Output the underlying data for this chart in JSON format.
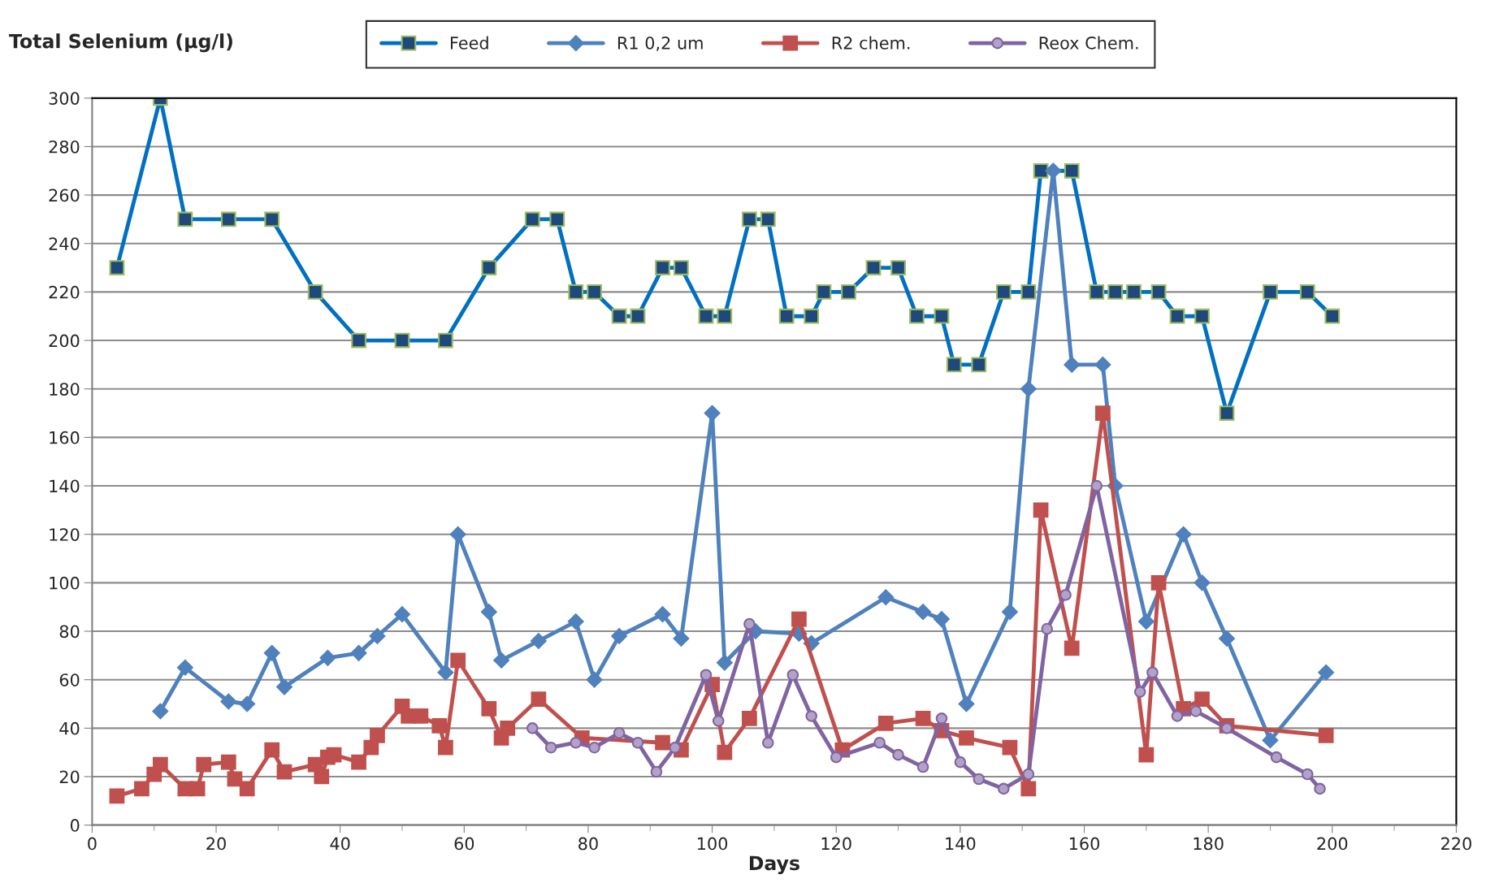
{
  "chart_data": {
    "type": "line",
    "xlabel": "Days",
    "ylabel": "Total Selenium (µg/l)",
    "xlim": [
      0,
      220
    ],
    "xticks": [
      0,
      20,
      40,
      60,
      80,
      100,
      120,
      140,
      160,
      180,
      200,
      220
    ],
    "ylim": [
      0,
      300
    ],
    "yticks": [
      0,
      20,
      40,
      60,
      80,
      100,
      120,
      140,
      160,
      180,
      200,
      220,
      240,
      260,
      280,
      300
    ],
    "grid": "y",
    "legend": "top",
    "series": [
      {
        "name": "Feed",
        "color": "#0070c0",
        "marker": "square",
        "x": [
          4,
          11,
          15,
          22,
          29,
          36,
          43,
          50,
          57,
          64,
          71,
          75,
          78,
          81,
          85,
          88,
          92,
          95,
          99,
          102,
          106,
          109,
          112,
          116,
          118,
          122,
          126,
          130,
          133,
          137,
          139,
          143,
          147,
          151,
          153,
          158,
          162,
          165,
          168,
          172,
          175,
          179,
          183,
          190,
          196,
          200
        ],
        "values": [
          230,
          300,
          250,
          250,
          250,
          220,
          200,
          200,
          200,
          230,
          250,
          250,
          220,
          220,
          210,
          210,
          230,
          230,
          210,
          210,
          250,
          250,
          210,
          210,
          220,
          220,
          230,
          230,
          210,
          210,
          190,
          190,
          220,
          220,
          270,
          270,
          220,
          220,
          220,
          220,
          210,
          210,
          170,
          220,
          220,
          210
        ]
      },
      {
        "name": "R1 0,2 um",
        "color": "#4f81bd",
        "marker": "diamond",
        "x": [
          11,
          15,
          22,
          25,
          29,
          31,
          38,
          43,
          46,
          50,
          57,
          59,
          64,
          66,
          72,
          78,
          81,
          85,
          92,
          95,
          100,
          102,
          107,
          114,
          116,
          128,
          134,
          137,
          141,
          148,
          151,
          155,
          158,
          163,
          165,
          170,
          176,
          179,
          183,
          190,
          199
        ],
        "values": [
          47,
          65,
          51,
          50,
          71,
          57,
          69,
          71,
          78,
          87,
          63,
          120,
          88,
          68,
          76,
          84,
          60,
          78,
          87,
          77,
          170,
          67,
          80,
          79,
          75,
          94,
          88,
          85,
          50,
          88,
          180,
          270,
          190,
          190,
          140,
          84,
          120,
          100,
          77,
          35,
          63
        ]
      },
      {
        "name": "R2 chem.",
        "color": "#c0504d",
        "marker": "square",
        "x": [
          4,
          8,
          10,
          11,
          15,
          17,
          18,
          22,
          23,
          25,
          29,
          31,
          36,
          37,
          38,
          39,
          43,
          45,
          46,
          50,
          51,
          53,
          56,
          57,
          59,
          64,
          66,
          67,
          72,
          79,
          92,
          95,
          100,
          102,
          106,
          114,
          121,
          128,
          134,
          137,
          141,
          148,
          151,
          153,
          158,
          163,
          170,
          172,
          176,
          179,
          183,
          199
        ],
        "values": [
          12,
          15,
          21,
          25,
          15,
          15,
          25,
          26,
          19,
          15,
          31,
          22,
          25,
          20,
          28,
          29,
          26,
          32,
          37,
          49,
          45,
          45,
          41,
          32,
          68,
          48,
          36,
          40,
          52,
          36,
          34,
          31,
          58,
          30,
          44,
          85,
          31,
          42,
          44,
          39,
          36,
          32,
          15,
          130,
          73,
          170,
          29,
          100,
          48,
          52,
          41,
          37
        ]
      },
      {
        "name": "Reox Chem.",
        "color": "#8064a2",
        "marker": "circle",
        "x": [
          71,
          74,
          78,
          81,
          85,
          88,
          91,
          94,
          99,
          101,
          106,
          109,
          113,
          116,
          120,
          127,
          130,
          134,
          137,
          140,
          143,
          147,
          151,
          154,
          157,
          162,
          169,
          171,
          175,
          178,
          183,
          191,
          196,
          198
        ],
        "values": [
          40,
          32,
          34,
          32,
          38,
          34,
          22,
          32,
          62,
          43,
          83,
          34,
          62,
          45,
          28,
          34,
          29,
          24,
          44,
          26,
          19,
          15,
          21,
          81,
          95,
          140,
          55,
          63,
          45,
          47,
          40,
          28,
          21,
          15
        ]
      }
    ]
  }
}
